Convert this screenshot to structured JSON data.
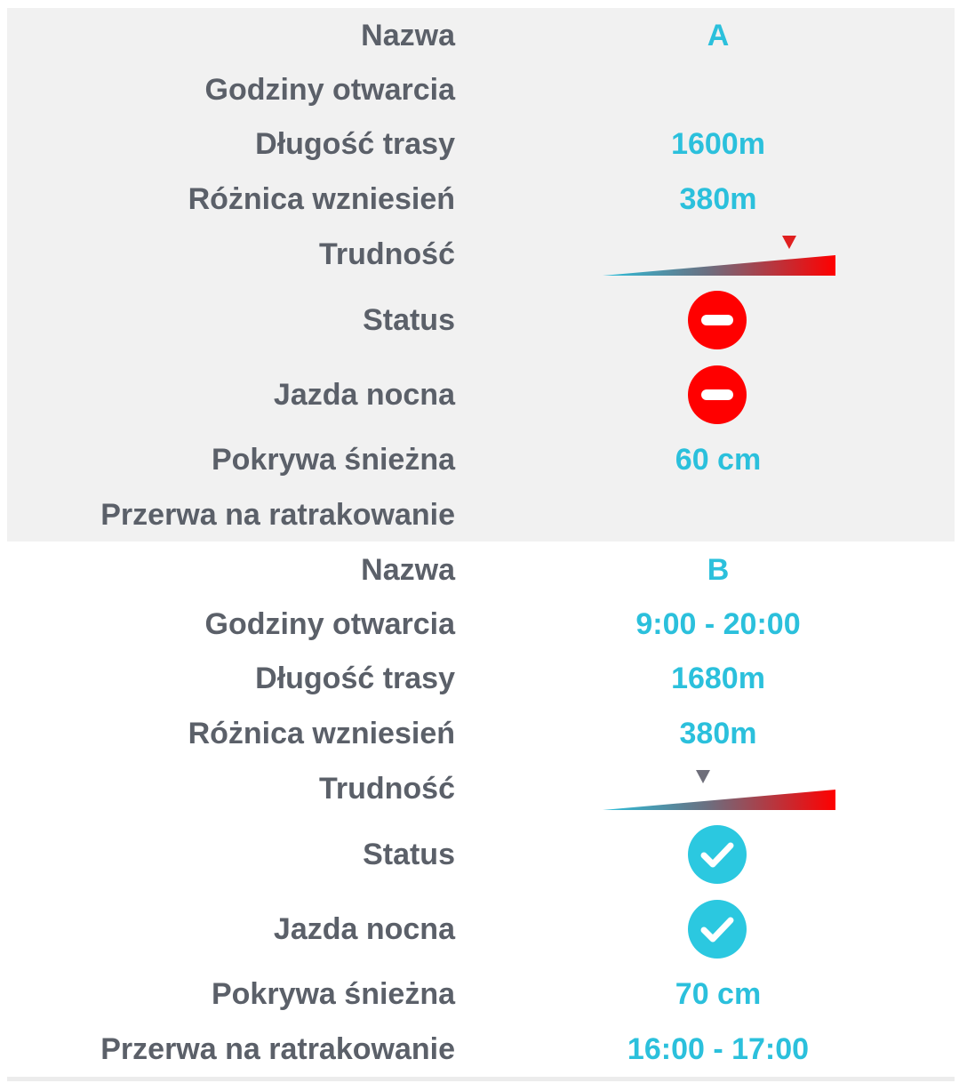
{
  "colors": {
    "label": "#5b6069",
    "value": "#2bc0dc",
    "closed": "#ff0000",
    "open": "#2bc8e0",
    "card_a_bg": "#f1f1f1"
  },
  "slopes": [
    {
      "name": "A",
      "labels": {
        "name": "Nazwa",
        "hours": "Godziny otwarcia",
        "length": "Długość trasy",
        "elevation": "Różnica wzniesień",
        "difficulty": "Trudność",
        "status": "Status",
        "night": "Jazda nocna",
        "snow": "Pokrywa śnieżna",
        "grooming": "Przerwa na ratrakowanie"
      },
      "values": {
        "name": "A",
        "hours": "",
        "length": "1600m",
        "elevation": "380m",
        "difficulty_level": 0.8,
        "status_icon": "no-entry-icon",
        "night_icon": "no-entry-icon",
        "snow": "60 cm",
        "grooming": ""
      }
    },
    {
      "name": "B",
      "labels": {
        "name": "Nazwa",
        "hours": "Godziny otwarcia",
        "length": "Długość trasy",
        "elevation": "Różnica wzniesień",
        "difficulty": "Trudność",
        "status": "Status",
        "night": "Jazda nocna",
        "snow": "Pokrywa śnieżna",
        "grooming": "Przerwa na ratrakowanie"
      },
      "values": {
        "name": "B",
        "hours": "9:00 - 20:00",
        "length": "1680m",
        "elevation": "380m",
        "difficulty_level": 0.43,
        "status_icon": "check-icon",
        "night_icon": "check-icon",
        "snow": "70 cm",
        "grooming": "16:00 - 17:00"
      }
    }
  ]
}
